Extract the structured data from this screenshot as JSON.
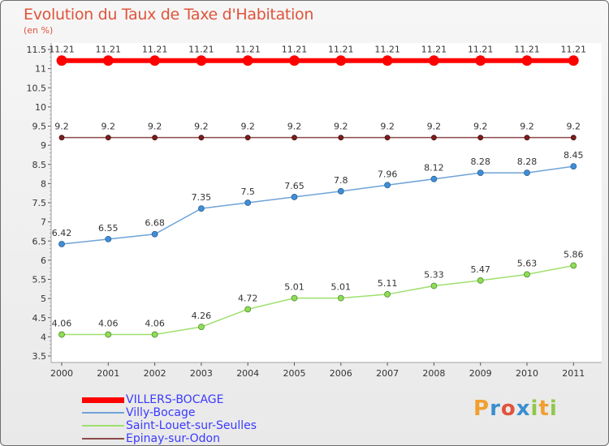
{
  "chart_data": {
    "type": "line",
    "title": "Evolution du Taux de Taxe d'Habitation",
    "unit_label": "(en %)",
    "x": [
      "2000",
      "2001",
      "2002",
      "2003",
      "2004",
      "2005",
      "2006",
      "2007",
      "2008",
      "2009",
      "2010",
      "2011"
    ],
    "ylim": [
      3.5,
      11.5
    ],
    "yticks": [
      "3.5",
      "4",
      "4.5",
      "5",
      "5.5",
      "6",
      "6.5",
      "7",
      "7.5",
      "8",
      "8.5",
      "9",
      "9.5",
      "10",
      "10.5",
      "11",
      "11.5"
    ],
    "grid": false,
    "legend_position": "bottom-left",
    "series": [
      {
        "name": "VILLERS-BOCAGE",
        "color": "#ff0000",
        "values": [
          11.21,
          11.21,
          11.21,
          11.21,
          11.21,
          11.21,
          11.21,
          11.21,
          11.21,
          11.21,
          11.21,
          11.21
        ],
        "labels": [
          "11.21",
          "11.21",
          "11.21",
          "11.21",
          "11.21",
          "11.21",
          "11.21",
          "11.21",
          "11.21",
          "11.21",
          "11.21",
          "11.21"
        ]
      },
      {
        "name": "Villy-Bocage",
        "color": "#6fa3d8",
        "values": [
          6.42,
          6.55,
          6.68,
          7.35,
          7.5,
          7.65,
          7.8,
          7.96,
          8.12,
          8.28,
          8.28,
          8.45
        ],
        "labels": [
          "6.42",
          "6.55",
          "6.68",
          "7.35",
          "7.5",
          "7.65",
          "7.8",
          "7.96",
          "8.12",
          "8.28",
          "8.28",
          "8.45"
        ]
      },
      {
        "name": "Saint-Louet-sur-Seulles",
        "color": "#9ee06e",
        "values": [
          4.06,
          4.06,
          4.06,
          4.26,
          4.72,
          5.01,
          5.01,
          5.11,
          5.33,
          5.47,
          5.63,
          5.86
        ],
        "labels": [
          "4.06",
          "4.06",
          "4.06",
          "4.26",
          "4.72",
          "5.01",
          "5.01",
          "5.11",
          "5.33",
          "5.47",
          "5.63",
          "5.86"
        ]
      },
      {
        "name": "Epinay-sur-Odon",
        "color": "#8b4a4a",
        "values": [
          9.2,
          9.2,
          9.2,
          9.2,
          9.2,
          9.2,
          9.2,
          9.2,
          9.2,
          9.2,
          9.2,
          9.2
        ],
        "labels": [
          "9.2",
          "9.2",
          "9.2",
          "9.2",
          "9.2",
          "9.2",
          "9.2",
          "9.2",
          "9.2",
          "9.2",
          "9.2",
          "9.2"
        ]
      }
    ]
  },
  "brand": {
    "text": "Proxiti"
  }
}
